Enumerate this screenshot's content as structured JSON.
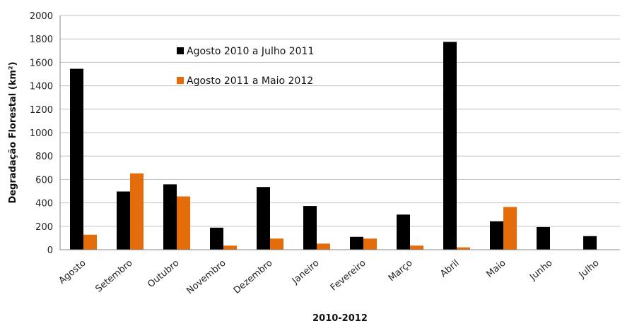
{
  "chart_data": {
    "type": "bar",
    "categories": [
      "Agosto",
      "Setembro",
      "Outubro",
      "Novembro",
      "Dezembro",
      "Janeiro",
      "Fevereiro",
      "Março",
      "Abril",
      "Maio",
      "Junho",
      "Julho"
    ],
    "series": [
      {
        "name": "Agosto 2010 a Julho 2011",
        "color": "#000000",
        "values": [
          1545,
          497,
          558,
          188,
          535,
          373,
          110,
          300,
          1775,
          243,
          193,
          116
        ]
      },
      {
        "name": "Agosto 2011 a Maio 2012",
        "color": "#e46c0a",
        "values": [
          128,
          652,
          455,
          35,
          95,
          52,
          95,
          35,
          20,
          365,
          null,
          null
        ]
      }
    ],
    "title": "",
    "xlabel": "2010-2012",
    "ylabel": "Degradação Florestal (km²)",
    "ylim": [
      0,
      2000
    ],
    "yticks": [
      0,
      200,
      400,
      600,
      800,
      1000,
      1200,
      1400,
      1600,
      1800,
      2000
    ],
    "grid": true,
    "legend_position": "top-center"
  }
}
